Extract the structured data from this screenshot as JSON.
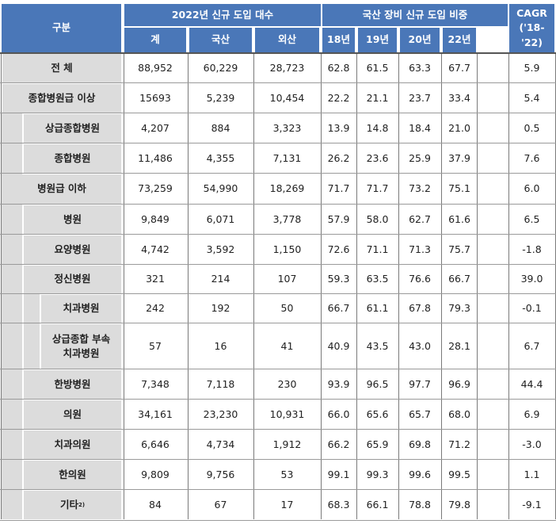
{
  "header": {
    "category": "구분",
    "group1": "2022년 신규 도입 대수",
    "group2": "국산 장비 신규 도입 비중",
    "cagr_line1": "CAGR",
    "cagr_line2": "('18-'22)",
    "sub": [
      "계",
      "국산",
      "외산",
      "18년",
      "19년",
      "20년",
      "22년"
    ]
  },
  "rows": [
    {
      "label": "전 체",
      "values": [
        "88,952",
        "60,229",
        "28,723",
        "62.8",
        "61.5",
        "63.3",
        "67.7",
        "5.9"
      ]
    },
    {
      "label": "종합병원급 이상",
      "values": [
        "15693",
        "5,239",
        "10,454",
        "22.2",
        "21.1",
        "23.7",
        "33.4",
        "5.4"
      ]
    },
    {
      "label": "상급종합병원",
      "values": [
        "4,207",
        "884",
        "3,323",
        "13.9",
        "14.8",
        "18.4",
        "21.0",
        "0.5"
      ]
    },
    {
      "label": "종합병원",
      "values": [
        "11,486",
        "4,355",
        "7,131",
        "26.2",
        "23.6",
        "25.9",
        "37.9",
        "7.6"
      ]
    },
    {
      "label": "병원급 이하",
      "values": [
        "73,259",
        "54,990",
        "18,269",
        "71.7",
        "71.7",
        "73.2",
        "75.1",
        "6.0"
      ]
    },
    {
      "label": "병원",
      "values": [
        "9,849",
        "6,071",
        "3,778",
        "57.9",
        "58.0",
        "62.7",
        "61.6",
        "6.5"
      ]
    },
    {
      "label": "요양병원",
      "values": [
        "4,742",
        "3,592",
        "1,150",
        "72.6",
        "71.1",
        "71.3",
        "75.7",
        "-1.8"
      ]
    },
    {
      "label": "정신병원",
      "values": [
        "321",
        "214",
        "107",
        "59.3",
        "63.5",
        "76.6",
        "66.7",
        "39.0"
      ]
    },
    {
      "label": "치과병원",
      "values": [
        "242",
        "192",
        "50",
        "66.7",
        "61.1",
        "67.8",
        "79.3",
        "-0.1"
      ]
    },
    {
      "label_line1": "상급종합 부속",
      "label_line2": "치과병원",
      "values": [
        "57",
        "16",
        "41",
        "40.9",
        "43.5",
        "43.0",
        "28.1",
        "6.7"
      ]
    },
    {
      "label": "한방병원",
      "values": [
        "7,348",
        "7,118",
        "230",
        "93.9",
        "96.5",
        "97.7",
        "96.9",
        "44.4"
      ]
    },
    {
      "label": "의원",
      "values": [
        "34,161",
        "23,230",
        "10,931",
        "66.0",
        "65.6",
        "65.7",
        "68.0",
        "6.9"
      ]
    },
    {
      "label": "치과의원",
      "values": [
        "6,646",
        "4,734",
        "1,912",
        "66.2",
        "65.9",
        "69.8",
        "71.2",
        "-3.0"
      ]
    },
    {
      "label": "한의원",
      "values": [
        "9,809",
        "9,756",
        "53",
        "99.1",
        "99.3",
        "99.6",
        "99.5",
        "1.1"
      ]
    },
    {
      "label": "기타",
      "label_sup": "2)",
      "values": [
        "84",
        "67",
        "17",
        "68.3",
        "66.1",
        "78.8",
        "79.8",
        "-9.1"
      ]
    }
  ]
}
